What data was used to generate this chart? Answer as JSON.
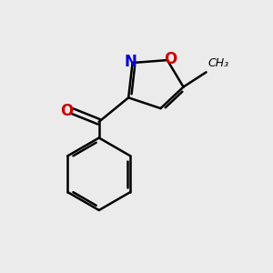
{
  "background_color": "#ebebeb",
  "bond_color": "#000000",
  "N_color": "#0000cc",
  "O_color": "#cc0000",
  "text_color": "#000000",
  "figsize": [
    3.0,
    3.0
  ],
  "dpi": 100,
  "xlim": [
    0,
    10
  ],
  "ylim": [
    0,
    10
  ]
}
